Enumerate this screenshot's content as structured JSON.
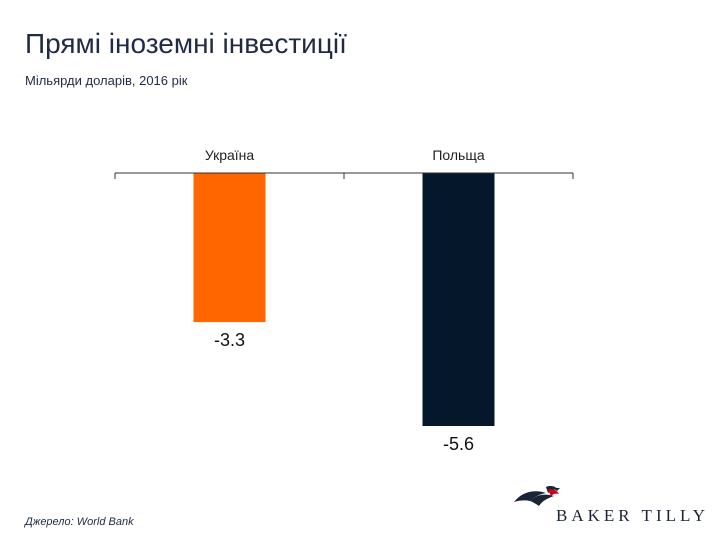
{
  "title": "Прямі іноземні інвестиції",
  "subtitle": "Мільярди доларів, 2016 рік",
  "source": "Джерело: World Bank",
  "logo": {
    "text": "BAKER TILLY",
    "icon": "eagle-logo-icon"
  },
  "colors": {
    "ukraine": "#ff6600",
    "poland": "#05182b",
    "axis": "#333333",
    "logo_red": "#d0021b",
    "logo_navy": "#1b2434"
  },
  "chart_data": {
    "type": "bar",
    "categories": [
      "Україна",
      "Польща"
    ],
    "values": [
      -3.3,
      -5.6
    ],
    "data_labels": [
      "-3.3",
      "-5.6"
    ],
    "ylim": [
      -6.2,
      0
    ],
    "category_axis_position": "top",
    "grid": false,
    "legend": "none",
    "bar_colors": [
      "#ff6600",
      "#05182b"
    ]
  }
}
